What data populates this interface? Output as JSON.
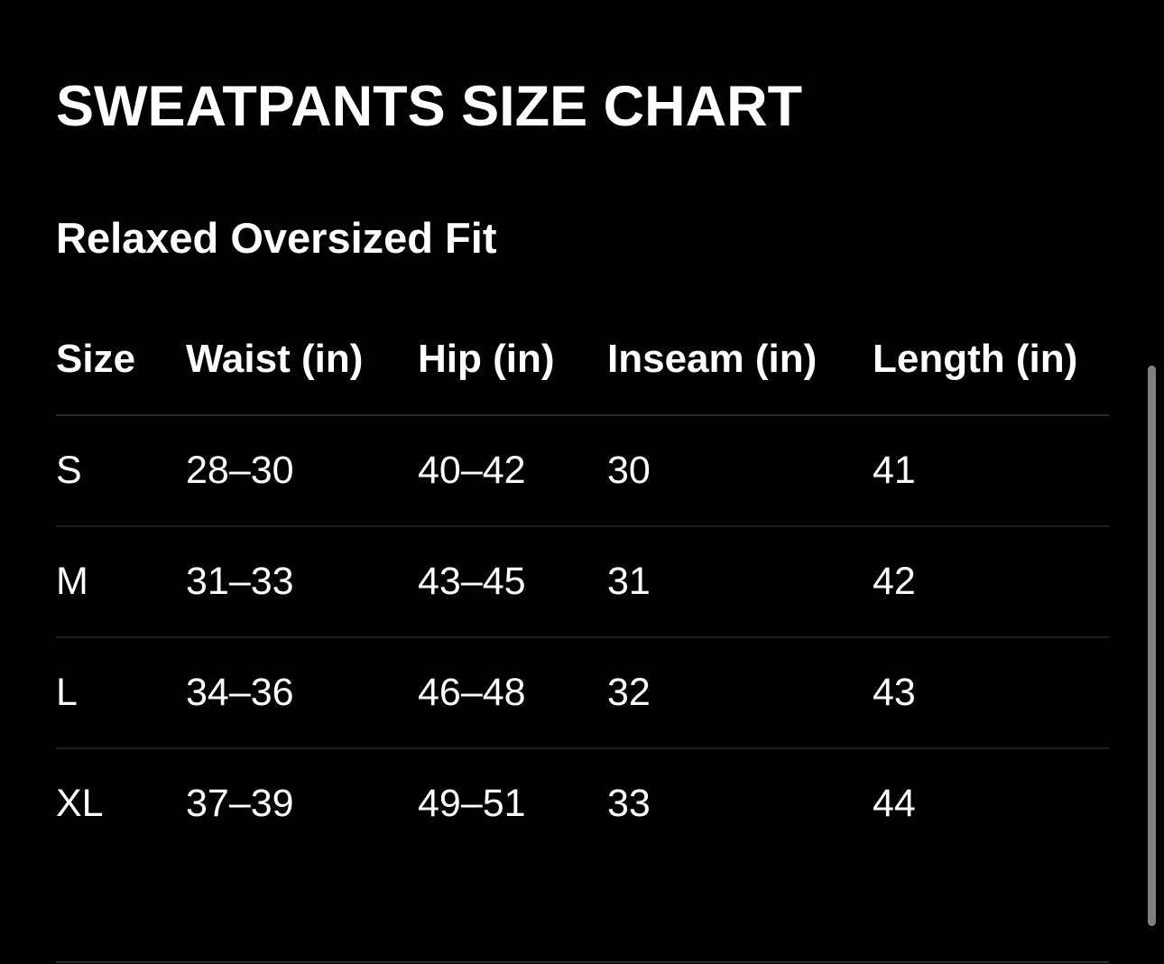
{
  "title": "SWEATPANTS SIZE CHART",
  "subtitle": "Relaxed Oversized Fit",
  "table": {
    "headers": [
      "Size",
      "Waist (in)",
      "Hip (in)",
      "Inseam (in)",
      "Length (in)"
    ],
    "rows": [
      [
        "S",
        "28–30",
        "40–42",
        "30",
        "41"
      ],
      [
        "M",
        "31–33",
        "43–45",
        "31",
        "42"
      ],
      [
        "L",
        "34–36",
        "46–48",
        "32",
        "43"
      ],
      [
        "XL",
        "37–39",
        "49–51",
        "33",
        "44"
      ]
    ]
  },
  "colors": {
    "background": "#000000",
    "text": "#ffffff",
    "divider": "#2a2a2a",
    "scrollbar": "#808080"
  }
}
